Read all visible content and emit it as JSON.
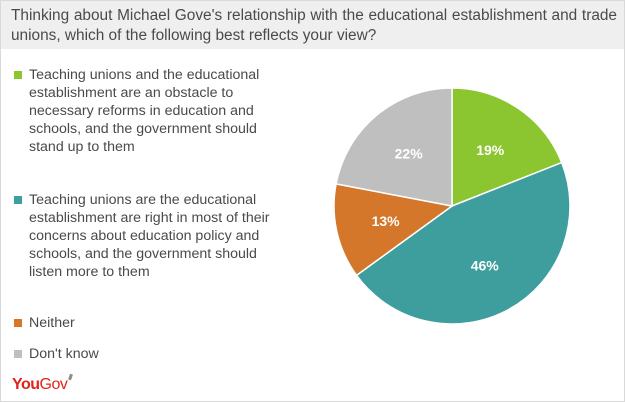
{
  "header": {
    "title": "Thinking about Michael Gove's relationship with the educational establishment and trade unions, which of the following best reflects your view?"
  },
  "brand": {
    "logo_text_you": "You",
    "logo_text_gov": "Gov"
  },
  "chart_data": {
    "type": "pie",
    "title": "Thinking about Michael Gove's relationship with the educational establishment and trade unions, which of the following best reflects your view?",
    "start_angle_deg": 0,
    "direction": "clockwise",
    "legend_position": "left",
    "slices": [
      {
        "label": "Teaching unions and the educational establishment are an obstacle to necessary reforms in education and schools, and the government should stand up to them",
        "value": 19,
        "display": "19%",
        "color": "#8bc52f"
      },
      {
        "label": "Teaching unions are the educational establishment are right in most of their concerns about education policy and schools, and the government should listen more to them",
        "value": 46,
        "display": "46%",
        "color": "#3e9e9e"
      },
      {
        "label": "Neither",
        "value": 13,
        "display": "13%",
        "color": "#d4772a"
      },
      {
        "label": "Don't know",
        "value": 22,
        "display": "22%",
        "color": "#bfbfbf"
      }
    ]
  }
}
